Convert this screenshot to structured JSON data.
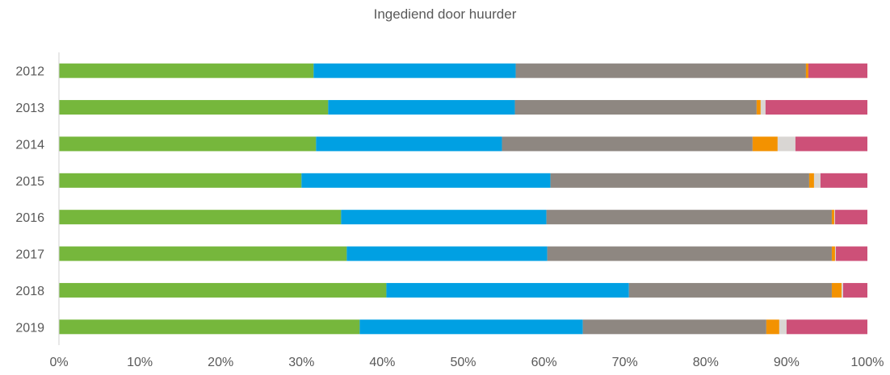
{
  "chart_data": {
    "type": "bar",
    "orientation": "horizontal",
    "stacked": "percent",
    "title": "Ingediend door huurder",
    "categories": [
      "2012",
      "2013",
      "2014",
      "2015",
      "2016",
      "2017",
      "2018",
      "2019"
    ],
    "xlim": [
      0,
      100
    ],
    "x_ticks": [
      "0%",
      "10%",
      "20%",
      "30%",
      "40%",
      "50%",
      "60%",
      "70%",
      "80%",
      "90%",
      "100%"
    ],
    "legend": "none",
    "grid": false,
    "series": [
      {
        "color": "#76b73c",
        "values": [
          31.5,
          33.3,
          31.8,
          30.0,
          34.9,
          35.6,
          40.5,
          37.2
        ]
      },
      {
        "color": "#00a0e3",
        "values": [
          25.0,
          23.1,
          23.0,
          30.8,
          25.4,
          24.8,
          30.0,
          27.6
        ]
      },
      {
        "color": "#8e8781",
        "values": [
          35.9,
          29.9,
          31.0,
          32.0,
          35.3,
          35.2,
          25.1,
          22.7
        ]
      },
      {
        "color": "#f39200",
        "values": [
          0.3,
          0.5,
          3.1,
          0.6,
          0.3,
          0.4,
          1.2,
          1.6
        ]
      },
      {
        "color": "#d9d6d3",
        "values": [
          0.0,
          0.6,
          2.2,
          0.8,
          0.1,
          0.1,
          0.2,
          0.9
        ]
      },
      {
        "color": "#cd5078",
        "values": [
          7.3,
          12.6,
          8.9,
          5.8,
          4.0,
          3.9,
          3.0,
          10.0
        ]
      }
    ]
  }
}
